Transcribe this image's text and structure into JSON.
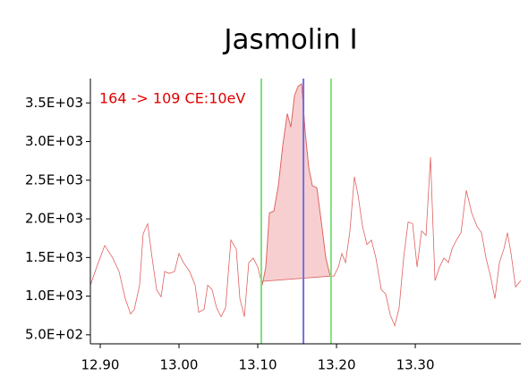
{
  "chart_data": {
    "type": "line",
    "title": "Jasmolin I",
    "annotation": "164 -> 109 CE:10eV",
    "color": "#e06060",
    "peak_fill": "#f8cfd0",
    "x": [
      12.8875,
      12.8955,
      12.9057,
      12.9159,
      12.9239,
      12.9318,
      12.9386,
      12.9432,
      12.95,
      12.9545,
      12.9602,
      12.9659,
      12.9716,
      12.9773,
      12.9818,
      12.9875,
      12.9943,
      13.0,
      13.0057,
      13.0136,
      13.0205,
      13.025,
      13.0318,
      13.0364,
      13.042,
      13.0477,
      13.0534,
      13.0591,
      13.0659,
      13.0727,
      13.0773,
      13.083,
      13.0886,
      13.0943,
      13.1,
      13.1057,
      13.1102,
      13.1148,
      13.1205,
      13.1261,
      13.1318,
      13.1375,
      13.142,
      13.1466,
      13.1511,
      13.1557,
      13.1602,
      13.1648,
      13.1693,
      13.175,
      13.1807,
      13.1864,
      13.192,
      13.1966,
      13.2023,
      13.2068,
      13.2114,
      13.217,
      13.2227,
      13.2273,
      13.233,
      13.2386,
      13.2443,
      13.25,
      13.2568,
      13.2625,
      13.2682,
      13.2739,
      13.2795,
      13.2852,
      13.2909,
      13.2966,
      13.3023,
      13.308,
      13.3136,
      13.3193,
      13.325,
      13.3307,
      13.3364,
      13.342,
      13.3466,
      13.3523,
      13.358,
      13.3648,
      13.3716,
      13.3784,
      13.3841,
      13.3898,
      13.3955,
      13.4011,
      13.4068,
      13.4125,
      13.417,
      13.4216,
      13.4273,
      13.434
    ],
    "values": [
      1142,
      1376,
      1656,
      1493,
      1318,
      967,
      769,
      827,
      1142,
      1808,
      1937,
      1493,
      1084,
      991,
      1318,
      1294,
      1318,
      1551,
      1434,
      1318,
      1142,
      792,
      827,
      1142,
      1084,
      850,
      734,
      850,
      1726,
      1610,
      967,
      734,
      1434,
      1493,
      1376,
      1142,
      1376,
      2077,
      2100,
      2427,
      2953,
      3362,
      3186,
      3595,
      3712,
      3747,
      3128,
      2661,
      2427,
      2404,
      1960,
      1493,
      1259,
      1259,
      1376,
      1551,
      1434,
      1843,
      2544,
      2310,
      1902,
      1668,
      1726,
      1493,
      1084,
      1026,
      757,
      617,
      850,
      1493,
      1960,
      1937,
      1376,
      1843,
      1785,
      2801,
      1201,
      1376,
      1493,
      1434,
      1610,
      1726,
      1820,
      2369,
      2077,
      1902,
      1820,
      1493,
      1259,
      967,
      1434,
      1610,
      1820,
      1551,
      1119,
      1201
    ],
    "vlines": [
      {
        "x": 13.1045,
        "color": "#80e080"
      },
      {
        "x": 13.158,
        "color": "#7070e0"
      },
      {
        "x": 13.193,
        "color": "#80e080"
      }
    ],
    "xlim": [
      12.8875,
      13.434
    ],
    "ylim": [
      383,
      3815
    ],
    "xticks": [
      {
        "value": 12.9,
        "label": "12.90"
      },
      {
        "value": 13.0,
        "label": "13.00"
      },
      {
        "value": 13.1,
        "label": "13.10"
      },
      {
        "value": 13.2,
        "label": "13.20"
      },
      {
        "value": 13.3,
        "label": "13.30"
      }
    ],
    "yticks": [
      {
        "value": 500,
        "label": "5.0E+02"
      },
      {
        "value": 1000,
        "label": "1.0E+03"
      },
      {
        "value": 1500,
        "label": "1.5E+03"
      },
      {
        "value": 2000,
        "label": "2.0E+03"
      },
      {
        "value": 2500,
        "label": "2.5E+03"
      },
      {
        "value": 3000,
        "label": "3.0E+03"
      },
      {
        "value": 3500,
        "label": "3.5E+03"
      }
    ]
  }
}
